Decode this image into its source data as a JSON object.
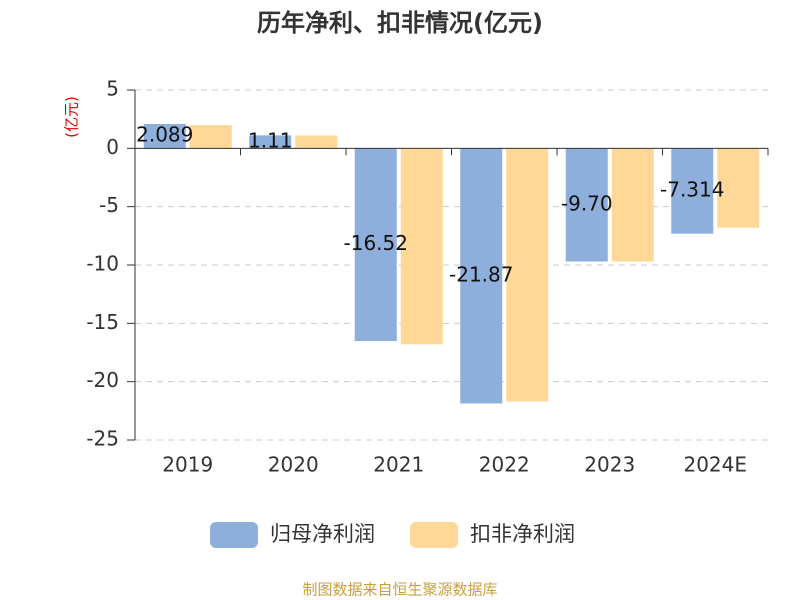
{
  "chart_data": {
    "type": "bar",
    "title": "历年净利、扣非情况(亿元)",
    "y_label": "(亿元)",
    "categories": [
      "2019",
      "2020",
      "2021",
      "2022",
      "2023",
      "2024E"
    ],
    "series": [
      {
        "name": "归母净利润",
        "color": "#8eaedb",
        "values": [
          2.089,
          1.11,
          -16.52,
          -21.87,
          -9.7,
          -7.314
        ],
        "value_labels": [
          "2.089",
          "1.11",
          "-16.52",
          "-21.87",
          "-9.70",
          "-7.314"
        ]
      },
      {
        "name": "扣非净利润",
        "color": "#ffd897",
        "values": [
          2.0,
          1.1,
          -16.8,
          -21.7,
          -9.7,
          -6.8
        ]
      }
    ],
    "ylim": [
      -25,
      5
    ],
    "yticks": [
      -25,
      -20,
      -15,
      -10,
      -5,
      0,
      5
    ],
    "grid": true,
    "legend": "bottom",
    "source": "制图数据来自恒生聚源数据库"
  }
}
